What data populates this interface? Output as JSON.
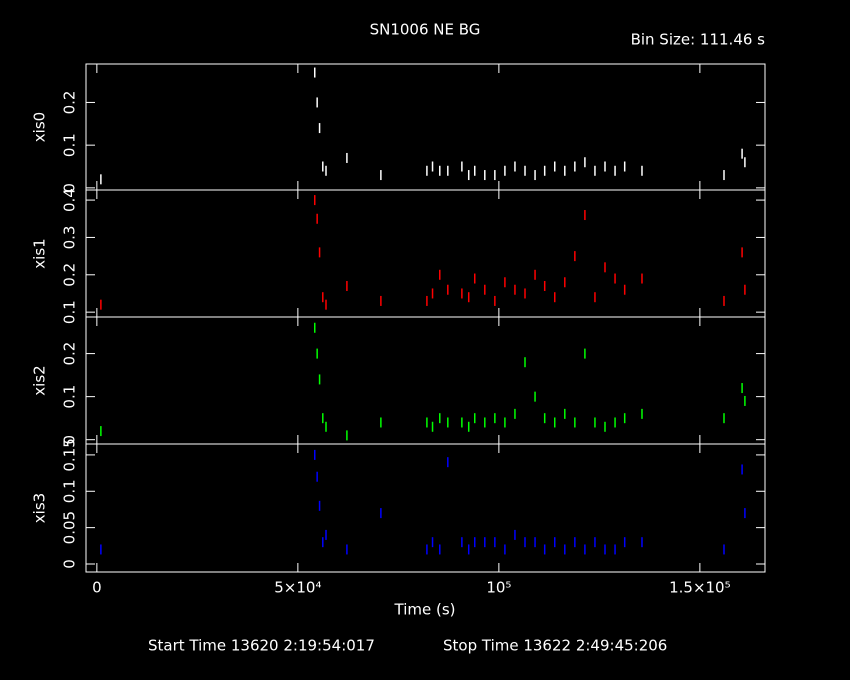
{
  "chart_data": [
    {
      "type": "scatter",
      "title": "SN1006 NE BG",
      "bin_size": "Bin Size: 111.46 s",
      "ylabel": "xis0",
      "color": "#ffffff",
      "x": [
        1000,
        54200,
        54800,
        55400,
        56200,
        57000,
        62200,
        70650,
        82100,
        83500,
        85300,
        87300,
        90800,
        92500,
        94000,
        96500,
        99000,
        101500,
        104000,
        106500,
        109000,
        111400,
        113900,
        116400,
        118900,
        121400,
        123900,
        126400,
        128900,
        131300,
        135600,
        156000,
        160500,
        161200
      ],
      "values": [
        0.02,
        0.27,
        0.2,
        0.14,
        0.05,
        0.04,
        0.07,
        0.03,
        0.04,
        0.05,
        0.04,
        0.04,
        0.05,
        0.03,
        0.04,
        0.03,
        0.03,
        0.04,
        0.05,
        0.04,
        0.03,
        0.04,
        0.05,
        0.04,
        0.05,
        0.06,
        0.04,
        0.05,
        0.04,
        0.05,
        0.04,
        0.03,
        0.08,
        0.06
      ],
      "xlim": [
        -2700,
        166200
      ],
      "xticks": [
        0,
        50000,
        100000,
        150000
      ],
      "ylim": [
        -0.005,
        0.29
      ],
      "yticks": [
        0,
        0.1,
        0.2
      ]
    },
    {
      "type": "scatter",
      "ylabel": "xis1",
      "color": "#ff0000",
      "x": [
        1000,
        54200,
        54800,
        55400,
        56200,
        57000,
        62200,
        70650,
        82100,
        83500,
        85300,
        87300,
        90800,
        92500,
        94000,
        96500,
        99000,
        101500,
        104000,
        106500,
        109000,
        111400,
        113900,
        116400,
        118900,
        121400,
        123900,
        126400,
        128900,
        131300,
        135600,
        156000,
        160500,
        161200
      ],
      "values": [
        0.12,
        0.4,
        0.35,
        0.26,
        0.14,
        0.12,
        0.17,
        0.13,
        0.13,
        0.15,
        0.2,
        0.16,
        0.15,
        0.14,
        0.19,
        0.16,
        0.13,
        0.18,
        0.16,
        0.15,
        0.2,
        0.17,
        0.14,
        0.18,
        0.25,
        0.36,
        0.14,
        0.22,
        0.19,
        0.16,
        0.19,
        0.13,
        0.26,
        0.16
      ],
      "xlim": [
        -2700,
        166200
      ],
      "xticks": [
        0,
        50000,
        100000,
        150000
      ],
      "ylim": [
        0.087,
        0.427
      ],
      "yticks": [
        0.1,
        0.2,
        0.3,
        0.4
      ]
    },
    {
      "type": "scatter",
      "ylabel": "xis2",
      "color": "#00ff00",
      "x": [
        1000,
        54200,
        54800,
        55400,
        56200,
        57000,
        62200,
        70650,
        82100,
        83500,
        85300,
        87300,
        90800,
        92500,
        94000,
        96500,
        99000,
        101500,
        104000,
        106500,
        109000,
        111400,
        113900,
        116400,
        118900,
        121400,
        123900,
        126400,
        128900,
        131300,
        135600,
        156000,
        160500,
        161200
      ],
      "values": [
        0.02,
        0.26,
        0.2,
        0.14,
        0.05,
        0.03,
        0.01,
        0.04,
        0.04,
        0.03,
        0.05,
        0.04,
        0.04,
        0.03,
        0.05,
        0.04,
        0.05,
        0.04,
        0.06,
        0.18,
        0.1,
        0.05,
        0.04,
        0.06,
        0.04,
        0.2,
        0.04,
        0.03,
        0.04,
        0.05,
        0.06,
        0.05,
        0.12,
        0.09
      ],
      "xlim": [
        -2700,
        166200
      ],
      "xticks": [
        0,
        50000,
        100000,
        150000
      ],
      "ylim": [
        -0.01,
        0.285
      ],
      "yticks": [
        0,
        0.1,
        0.2
      ]
    },
    {
      "type": "scatter",
      "ylabel": "xis3",
      "xlabel": "Time (s)",
      "color": "#0000ff",
      "x": [
        1000,
        54200,
        54800,
        55400,
        56200,
        57000,
        62200,
        70650,
        82100,
        83500,
        85300,
        87300,
        90800,
        92500,
        94000,
        96500,
        99000,
        101500,
        104000,
        106500,
        109000,
        111400,
        113900,
        116400,
        118900,
        121400,
        123900,
        126400,
        128900,
        131300,
        135600,
        156000,
        160500,
        161200
      ],
      "values": [
        0.02,
        0.15,
        0.12,
        0.08,
        0.03,
        0.04,
        0.02,
        0.07,
        0.02,
        0.03,
        0.02,
        0.14,
        0.03,
        0.02,
        0.03,
        0.03,
        0.03,
        0.02,
        0.04,
        0.03,
        0.03,
        0.02,
        0.03,
        0.02,
        0.03,
        0.02,
        0.03,
        0.02,
        0.02,
        0.03,
        0.03,
        0.02,
        0.13,
        0.07
      ],
      "xlim": [
        -2700,
        166200
      ],
      "xticks": [
        0,
        {
          "value": 50000,
          "label": "5×10⁴"
        },
        {
          "value": 100000,
          "label": "10⁵"
        },
        {
          "value": 150000,
          "label": "1.5×10⁵"
        }
      ],
      "ylim": [
        -0.011,
        0.165
      ],
      "yticks": [
        0,
        0.05,
        0.1,
        0.15
      ]
    }
  ],
  "footer": {
    "start_time": "Start Time 13620  2:19:54:017",
    "stop_time": "Stop Time 13622  2:49:45:206"
  }
}
